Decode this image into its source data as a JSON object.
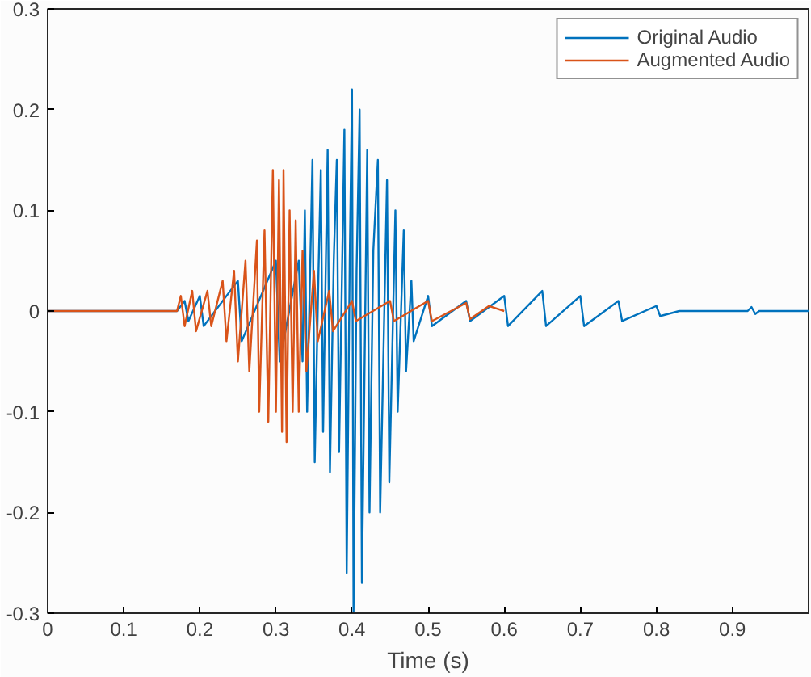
{
  "chart_data": {
    "type": "line",
    "xlabel": "Time (s)",
    "xlim": [
      0,
      1
    ],
    "ylim": [
      -0.3,
      0.3
    ],
    "xticks": [
      0,
      0.1,
      0.2,
      0.3,
      0.4,
      0.5,
      0.6,
      0.7,
      0.8,
      0.9
    ],
    "yticks": [
      -0.3,
      -0.2,
      -0.1,
      0,
      0.1,
      0.2,
      0.3
    ],
    "grid": false,
    "legend": "top right",
    "series": [
      {
        "name": "Original Audio",
        "color": "#0072bd",
        "x": [
          0,
          0.17,
          0.18,
          0.185,
          0.2,
          0.205,
          0.25,
          0.255,
          0.3,
          0.305,
          0.33,
          0.335,
          0.338,
          0.341,
          0.348,
          0.351,
          0.356,
          0.359,
          0.362,
          0.368,
          0.371,
          0.376,
          0.38,
          0.383,
          0.39,
          0.393,
          0.397,
          0.4,
          0.402,
          0.406,
          0.41,
          0.413,
          0.42,
          0.423,
          0.428,
          0.434,
          0.437,
          0.446,
          0.449,
          0.457,
          0.46,
          0.468,
          0.471,
          0.478,
          0.481,
          0.5,
          0.505,
          0.55,
          0.555,
          0.6,
          0.605,
          0.65,
          0.655,
          0.7,
          0.705,
          0.75,
          0.755,
          0.8,
          0.805,
          0.83,
          0.92,
          0.925,
          0.93,
          0.935,
          1
        ],
        "values": [
          0,
          0,
          0.01,
          -0.01,
          0.015,
          -0.015,
          0.03,
          -0.03,
          0.05,
          -0.05,
          0.05,
          -0.05,
          0.1,
          -0.1,
          0.15,
          -0.15,
          0.04,
          0.14,
          -0.12,
          0.16,
          -0.16,
          0.05,
          0.15,
          -0.14,
          0.18,
          -0.26,
          0.05,
          0.22,
          -0.3,
          0.04,
          0.2,
          -0.27,
          0.16,
          -0.2,
          0.06,
          0.15,
          -0.2,
          0.13,
          -0.17,
          0.1,
          -0.1,
          0.08,
          -0.06,
          0.03,
          -0.03,
          0.015,
          -0.015,
          0.01,
          -0.01,
          0.015,
          -0.015,
          0.02,
          -0.015,
          0.015,
          -0.015,
          0.01,
          -0.01,
          0.005,
          -0.005,
          0,
          0,
          0.004,
          -0.003,
          0,
          0
        ]
      },
      {
        "name": "Augmented Audio",
        "color": "#d95319",
        "x": [
          0,
          0.17,
          0.175,
          0.18,
          0.19,
          0.195,
          0.21,
          0.215,
          0.23,
          0.235,
          0.245,
          0.25,
          0.26,
          0.265,
          0.275,
          0.278,
          0.285,
          0.29,
          0.296,
          0.3,
          0.304,
          0.308,
          0.31,
          0.314,
          0.318,
          0.322,
          0.326,
          0.33,
          0.335,
          0.34,
          0.35,
          0.355,
          0.37,
          0.375,
          0.4,
          0.405,
          0.45,
          0.455,
          0.5,
          0.505,
          0.55,
          0.555,
          0.58,
          0.6
        ],
        "values": [
          0,
          0,
          0.015,
          -0.015,
          0.02,
          -0.02,
          0.02,
          -0.015,
          0.03,
          -0.03,
          0.04,
          -0.05,
          0.05,
          -0.06,
          0.07,
          -0.1,
          0.08,
          -0.11,
          0.14,
          -0.1,
          0.13,
          -0.12,
          0.14,
          -0.13,
          0.1,
          -0.1,
          0.09,
          -0.1,
          0.06,
          -0.06,
          0.04,
          -0.03,
          0.02,
          -0.02,
          0.01,
          -0.01,
          0.01,
          -0.01,
          0.01,
          -0.01,
          0.008,
          -0.008,
          0.005,
          0
        ]
      }
    ]
  }
}
